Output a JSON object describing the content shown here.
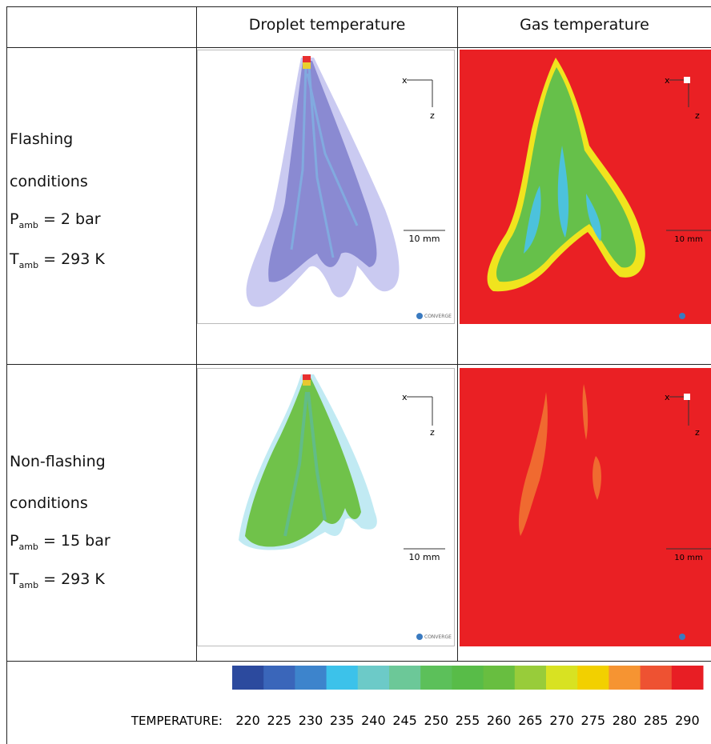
{
  "header": {
    "columns": [
      "Droplet temperature",
      "Gas temperature"
    ]
  },
  "rows": [
    {
      "label_lines": [
        "Flashing",
        "conditions"
      ],
      "pressure": {
        "symbol": "P",
        "subscript": "amb",
        "text": "= 2 bar"
      },
      "temperature": {
        "symbol": "T",
        "subscript": "amb",
        "text": "= 293 K"
      },
      "panels": [
        {
          "axis_x": "x",
          "axis_z": "z",
          "scale": "10 mm",
          "logo": "CONVERGE"
        },
        {
          "axis_x": "x",
          "axis_z": "z",
          "scale": "10 mm"
        }
      ]
    },
    {
      "label_lines": [
        "Non-flashing",
        "conditions"
      ],
      "pressure": {
        "symbol": "P",
        "subscript": "amb",
        "text": "= 15 bar"
      },
      "temperature": {
        "symbol": "T",
        "subscript": "amb",
        "text": "= 293 K"
      },
      "panels": [
        {
          "axis_x": "x",
          "axis_z": "z",
          "scale": "10 mm",
          "logo": "CONVERGE"
        },
        {
          "axis_x": "x",
          "axis_z": "z",
          "scale": "10 mm"
        }
      ]
    }
  ],
  "colorbar": {
    "label": "TEMPERATURE:",
    "ticks": [
      220,
      225,
      230,
      235,
      240,
      245,
      250,
      255,
      260,
      265,
      270,
      275,
      280,
      285,
      290
    ],
    "colors": [
      "#2c4a9e",
      "#3a66ba",
      "#3d84cc",
      "#3cc2ea",
      "#6ccac8",
      "#6cc898",
      "#5cc05a",
      "#58bc48",
      "#68be40",
      "#98cc3a",
      "#d8e222",
      "#f2d000",
      "#f69432",
      "#ee5232",
      "#e81e24"
    ]
  }
}
